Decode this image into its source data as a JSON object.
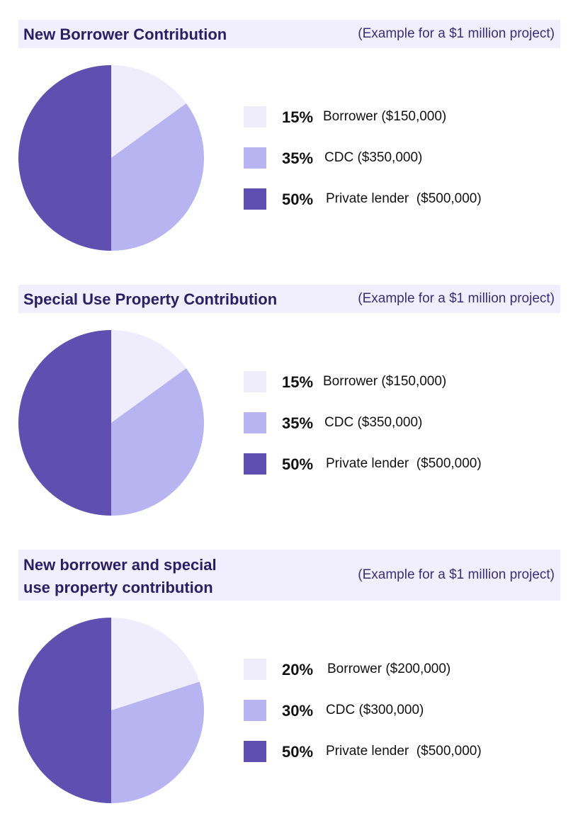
{
  "colors": {
    "light": "#efecfb",
    "medium": "#b8b4f2",
    "dark": "#5e4fb0"
  },
  "chart_data": [
    {
      "type": "pie",
      "title": "New Borrower Contribution",
      "subtitle": "(Example for a $1 million project)",
      "slices": [
        {
          "label": "Borrower",
          "amount": "($150,000)",
          "value": 15,
          "pct_label": "15%",
          "color": "light"
        },
        {
          "label": "CDC",
          "amount": "($350,000)",
          "value": 35,
          "pct_label": "35%",
          "color": "medium"
        },
        {
          "label": "Private lender",
          "amount": "($500,000)",
          "value": 50,
          "pct_label": "50%",
          "color": "dark"
        }
      ]
    },
    {
      "type": "pie",
      "title": "Special Use Property Contribution",
      "subtitle": "(Example for a $1 million project)",
      "slices": [
        {
          "label": "Borrower",
          "amount": "($150,000)",
          "value": 15,
          "pct_label": "15%",
          "color": "light"
        },
        {
          "label": "CDC",
          "amount": "($350,000)",
          "value": 35,
          "pct_label": "35%",
          "color": "medium"
        },
        {
          "label": "Private lender",
          "amount": "($500,000)",
          "value": 50,
          "pct_label": "50%",
          "color": "dark"
        }
      ]
    },
    {
      "type": "pie",
      "title": "New borrower and special use property contribution",
      "title_lines": [
        "New borrower and special",
        "use property contribution"
      ],
      "subtitle": "(Example for a $1 million project)",
      "slices": [
        {
          "label": "Borrower",
          "amount": "($200,000)",
          "value": 20,
          "pct_label": "20%",
          "color": "light"
        },
        {
          "label": "CDC",
          "amount": "($300,000)",
          "value": 30,
          "pct_label": "30%",
          "color": "medium"
        },
        {
          "label": "Private lender",
          "amount": "($500,000)",
          "value": 50,
          "pct_label": "50%",
          "color": "dark"
        }
      ]
    }
  ]
}
